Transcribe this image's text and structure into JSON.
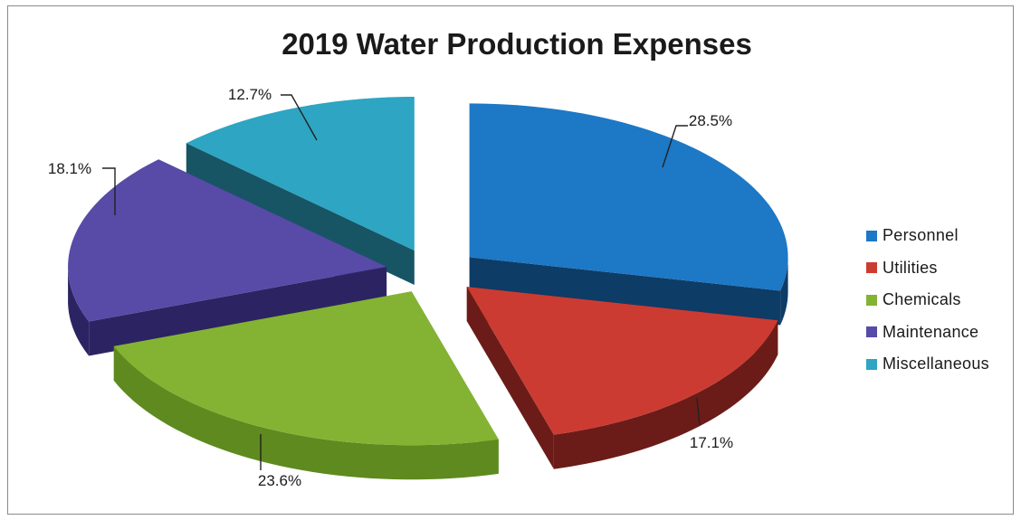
{
  "chart_data": {
    "type": "pie",
    "title": "2019 Water Production Expenses",
    "legend_position": "right",
    "slices": [
      {
        "label": "Personnel",
        "value": 28.5,
        "display": "28.5%",
        "color": "#1d78c6",
        "side": "#0d3c66"
      },
      {
        "label": "Utilities",
        "value": 17.1,
        "display": "17.1%",
        "color": "#cc3b32",
        "side": "#6b1c18"
      },
      {
        "label": "Chemicals",
        "value": 23.6,
        "display": "23.6%",
        "color": "#84b333",
        "side": "#5e8a1f"
      },
      {
        "label": "Maintenance",
        "value": 18.1,
        "display": "18.1%",
        "color": "#574ba7",
        "side": "#2c2462"
      },
      {
        "label": "Miscellaneous",
        "value": 12.7,
        "display": "12.7%",
        "color": "#2da5c3",
        "side": "#175565"
      }
    ]
  }
}
